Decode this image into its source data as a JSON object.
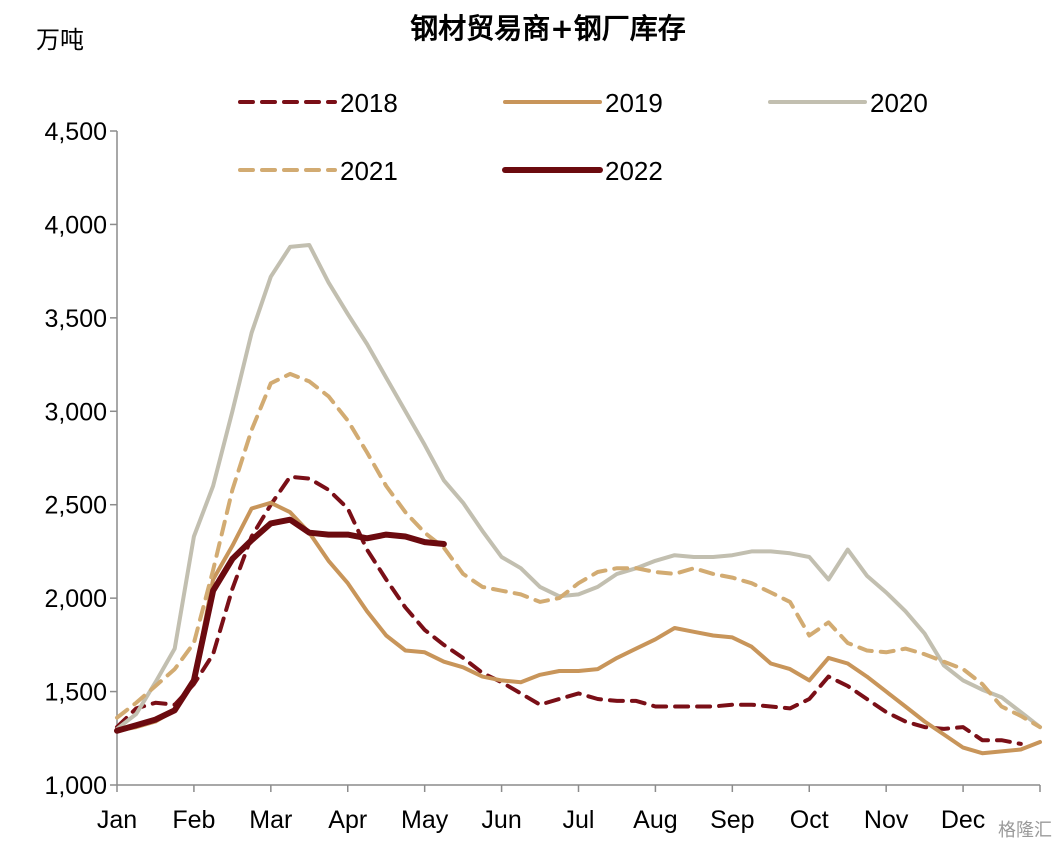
{
  "chart_data": {
    "type": "line",
    "title": "钢材贸易商+钢厂库存",
    "ylabel": "万吨",
    "xlabel": "",
    "ylim": [
      1000,
      4500
    ],
    "yticks": [
      "1,000",
      "1,500",
      "2,000",
      "2,500",
      "3,000",
      "3,500",
      "4,000",
      "4,500"
    ],
    "ytick_values": [
      1000,
      1500,
      2000,
      2500,
      3000,
      3500,
      4000,
      4500
    ],
    "xlim": [
      1,
      13
    ],
    "x_tick_labels": [
      "Jan",
      "Feb",
      "Mar",
      "Apr",
      "May",
      "Jun",
      "Jul",
      "Aug",
      "Sep",
      "Oct",
      "Nov",
      "Dec"
    ],
    "x_tick_positions": [
      1,
      2,
      3,
      4,
      5,
      6,
      7,
      8,
      9,
      10,
      11,
      12
    ],
    "grid": false,
    "legend": "top, two rows",
    "series": [
      {
        "name": "2018",
        "color": "#7a0f17",
        "dash": "dashed",
        "weight": "medium",
        "x": [
          1,
          1.25,
          1.5,
          1.75,
          2,
          2.25,
          2.5,
          2.75,
          3,
          3.25,
          3.5,
          3.75,
          4,
          4.25,
          4.5,
          4.75,
          5,
          5.25,
          5.5,
          5.75,
          6,
          6.25,
          6.5,
          6.75,
          7,
          7.25,
          7.5,
          7.75,
          8,
          8.25,
          8.5,
          8.75,
          9,
          9.25,
          9.5,
          9.75,
          10,
          10.25,
          10.5,
          10.75,
          11,
          11.25,
          11.5,
          11.75,
          12,
          12.25,
          12.5,
          12.75
        ],
        "y": [
          1310,
          1410,
          1440,
          1430,
          1540,
          1700,
          2050,
          2330,
          2500,
          2650,
          2640,
          2580,
          2480,
          2260,
          2100,
          1950,
          1830,
          1750,
          1680,
          1600,
          1550,
          1490,
          1430,
          1460,
          1490,
          1460,
          1450,
          1450,
          1420,
          1420,
          1420,
          1420,
          1430,
          1430,
          1420,
          1410,
          1460,
          1580,
          1530,
          1460,
          1390,
          1340,
          1310,
          1300,
          1310,
          1240,
          1240,
          1220
        ]
      },
      {
        "name": "2019",
        "color": "#c8955a",
        "dash": "solid",
        "weight": "medium",
        "x": [
          1,
          1.25,
          1.5,
          1.75,
          2,
          2.25,
          2.5,
          2.75,
          3,
          3.25,
          3.5,
          3.75,
          4,
          4.25,
          4.5,
          4.75,
          5,
          5.25,
          5.5,
          5.75,
          6,
          6.25,
          6.5,
          6.75,
          7,
          7.25,
          7.5,
          7.75,
          8,
          8.25,
          8.5,
          8.75,
          9,
          9.25,
          9.5,
          9.75,
          10,
          10.25,
          10.5,
          10.75,
          11,
          11.25,
          11.5,
          11.75,
          12,
          12.25,
          12.5,
          12.75,
          13
        ],
        "y": [
          1290,
          1310,
          1340,
          1400,
          1560,
          2100,
          2280,
          2480,
          2510,
          2460,
          2350,
          2200,
          2080,
          1930,
          1800,
          1720,
          1710,
          1660,
          1630,
          1580,
          1560,
          1550,
          1590,
          1610,
          1610,
          1620,
          1680,
          1730,
          1780,
          1840,
          1820,
          1800,
          1790,
          1740,
          1650,
          1620,
          1560,
          1680,
          1650,
          1580,
          1500,
          1420,
          1340,
          1270,
          1200,
          1170,
          1180,
          1190,
          1230
        ]
      },
      {
        "name": "2020",
        "color": "#c2bfb0",
        "dash": "solid",
        "weight": "medium",
        "x": [
          1,
          1.25,
          1.5,
          1.75,
          2,
          2.25,
          2.5,
          2.75,
          3,
          3.25,
          3.5,
          3.75,
          4,
          4.25,
          4.5,
          4.75,
          5,
          5.25,
          5.5,
          5.75,
          6,
          6.25,
          6.5,
          6.75,
          7,
          7.25,
          7.5,
          7.75,
          8,
          8.25,
          8.5,
          8.75,
          9,
          9.25,
          9.5,
          9.75,
          10,
          10.25,
          10.5,
          10.75,
          11,
          11.25,
          11.5,
          11.75,
          12,
          12.25,
          12.5,
          12.75,
          13
        ],
        "y": [
          1300,
          1380,
          1550,
          1730,
          2330,
          2600,
          3000,
          3420,
          3720,
          3880,
          3890,
          3690,
          3520,
          3360,
          3180,
          3000,
          2820,
          2630,
          2510,
          2360,
          2220,
          2160,
          2060,
          2010,
          2020,
          2060,
          2130,
          2160,
          2200,
          2230,
          2220,
          2220,
          2230,
          2250,
          2250,
          2240,
          2220,
          2100,
          2260,
          2120,
          2030,
          1930,
          1810,
          1640,
          1560,
          1510,
          1470,
          1390,
          1310
        ]
      },
      {
        "name": "2021",
        "color": "#d2ab72",
        "dash": "dashed",
        "weight": "medium",
        "x": [
          1,
          1.25,
          1.5,
          1.75,
          2,
          2.25,
          2.5,
          2.75,
          3,
          3.25,
          3.5,
          3.75,
          4,
          4.25,
          4.5,
          4.75,
          5,
          5.25,
          5.5,
          5.75,
          6,
          6.25,
          6.5,
          6.75,
          7,
          7.25,
          7.5,
          7.75,
          8,
          8.25,
          8.5,
          8.75,
          9,
          9.25,
          9.5,
          9.75,
          10,
          10.25,
          10.5,
          10.75,
          11,
          11.25,
          11.5,
          11.75,
          12,
          12.25,
          12.5,
          12.75,
          13
        ],
        "y": [
          1360,
          1440,
          1530,
          1620,
          1760,
          2150,
          2580,
          2900,
          3150,
          3200,
          3160,
          3080,
          2950,
          2780,
          2600,
          2460,
          2350,
          2270,
          2130,
          2060,
          2040,
          2020,
          1980,
          2000,
          2080,
          2140,
          2160,
          2160,
          2140,
          2130,
          2160,
          2130,
          2110,
          2080,
          2030,
          1980,
          1800,
          1870,
          1760,
          1720,
          1710,
          1730,
          1700,
          1660,
          1620,
          1540,
          1420,
          1370,
          1310
        ]
      },
      {
        "name": "2022",
        "color": "#6b0a0f",
        "dash": "solid",
        "weight": "thick",
        "x": [
          1,
          1.25,
          1.5,
          1.75,
          2,
          2.25,
          2.5,
          2.75,
          3,
          3.25,
          3.5,
          3.75,
          4,
          4.25,
          4.5,
          4.75,
          5,
          5.25
        ],
        "y": [
          1290,
          1320,
          1350,
          1400,
          1560,
          2040,
          2210,
          2310,
          2400,
          2420,
          2350,
          2340,
          2340,
          2320,
          2340,
          2330,
          2300,
          2290
        ]
      }
    ]
  },
  "watermark": "格隆汇"
}
